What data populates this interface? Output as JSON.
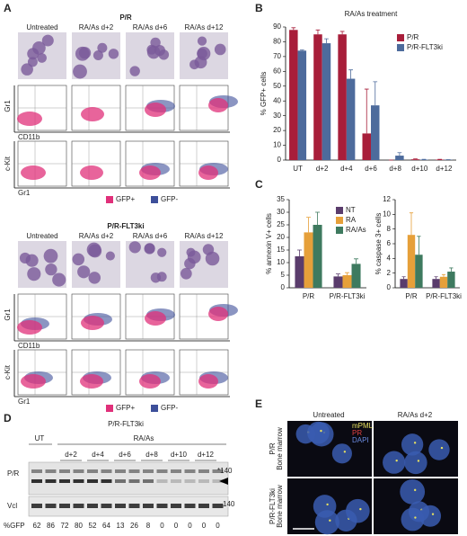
{
  "panel_labels": [
    "A",
    "B",
    "C",
    "D",
    "E"
  ],
  "panel_a": {
    "groups": [
      {
        "title": "P/R",
        "columns": [
          "Untreated",
          "RA/As d+2",
          "RA/As d+6",
          "RA/As d+12"
        ]
      },
      {
        "title": "P/R-FLT3ki",
        "columns": [
          "Untreated",
          "RA/As d+2",
          "RA/As d+6",
          "RA/As d+12"
        ]
      }
    ],
    "axis_labels": [
      "Gr1",
      "CD11b",
      "c-Kit",
      "Gr1"
    ],
    "legend": [
      "GFP+",
      "GFP-"
    ]
  },
  "chart_data": [
    {
      "type": "bar",
      "title": "RA/As treatment",
      "y_label": "% GFP+ cells",
      "categories": [
        "UT",
        "d+2",
        "d+4",
        "d+6",
        "d+8",
        "d+10",
        "d+12"
      ],
      "series": [
        {
          "name": "P/R",
          "color": "#a81e3a",
          "values": [
            88,
            85,
            85,
            18,
            0,
            0.5,
            0.3
          ],
          "errors": [
            1.5,
            3,
            2,
            30,
            0,
            0.3,
            0.2
          ]
        },
        {
          "name": "P/R-FLT3ki",
          "color": "#4d6b9c",
          "values": [
            74,
            79,
            55,
            37,
            3,
            0.3,
            0.2
          ],
          "errors": [
            0.5,
            3,
            6,
            16,
            2,
            0.2,
            0.1
          ]
        }
      ],
      "ylim": [
        0,
        90
      ],
      "yticks": [
        0,
        10,
        20,
        30,
        40,
        50,
        60,
        70,
        80,
        90
      ],
      "legend": "top-right"
    },
    {
      "type": "bar",
      "y_label": "% annexin V+ cells",
      "categories": [
        "P/R",
        "P/R-FLT3ki"
      ],
      "series": [
        {
          "name": "NT",
          "color": "#5a3c6c",
          "values": [
            12.5,
            4.5
          ],
          "errors": [
            2.5,
            1
          ]
        },
        {
          "name": "RA",
          "color": "#e6a03a",
          "values": [
            22,
            5
          ],
          "errors": [
            6,
            1
          ]
        },
        {
          "name": "RA/As",
          "color": "#3e7a5f",
          "values": [
            25,
            9.5
          ],
          "errors": [
            5,
            2
          ]
        }
      ],
      "ylim": [
        0,
        35
      ],
      "yticks": [
        0,
        5,
        10,
        15,
        20,
        25,
        30,
        35
      ],
      "legend": "top-right"
    },
    {
      "type": "bar",
      "y_label": "% caspase 3+ cells",
      "categories": [
        "P/R",
        "P/R-FLT3ki"
      ],
      "series": [
        {
          "name": "NT",
          "color": "#5a3c6c",
          "values": [
            1.2,
            1.2
          ],
          "errors": [
            0.3,
            0.3
          ]
        },
        {
          "name": "RA",
          "color": "#e6a03a",
          "values": [
            7.2,
            1.5
          ],
          "errors": [
            3,
            0.3
          ]
        },
        {
          "name": "RA/As",
          "color": "#3e7a5f",
          "values": [
            4.5,
            2.2
          ],
          "errors": [
            2.5,
            0.5
          ]
        }
      ],
      "ylim": [
        0,
        12
      ],
      "yticks": [
        0,
        2,
        4,
        6,
        8,
        10,
        12
      ]
    }
  ],
  "panel_d": {
    "title": "P/R-FLT3ki",
    "untreated": "UT",
    "treated": "RA/As",
    "days": [
      "d+2",
      "d+4",
      "d+6",
      "d+8",
      "d+10",
      "d+12"
    ],
    "rows": [
      "P/R",
      "Vcl"
    ],
    "markers": [
      "*140",
      "140"
    ],
    "gfp_label": "%GFP",
    "gfp": [
      62,
      86,
      72,
      80,
      52,
      64,
      13,
      26,
      8,
      0,
      0,
      0,
      0,
      0
    ]
  },
  "panel_e": {
    "columns": [
      "Untreated",
      "RA/As d+2"
    ],
    "rows": [
      [
        "P/R",
        "Bone marrow"
      ],
      [
        "P/R-FLT3ki",
        "Bone marrow"
      ]
    ],
    "stains": [
      "mPML",
      "PR",
      "DAPI"
    ]
  }
}
